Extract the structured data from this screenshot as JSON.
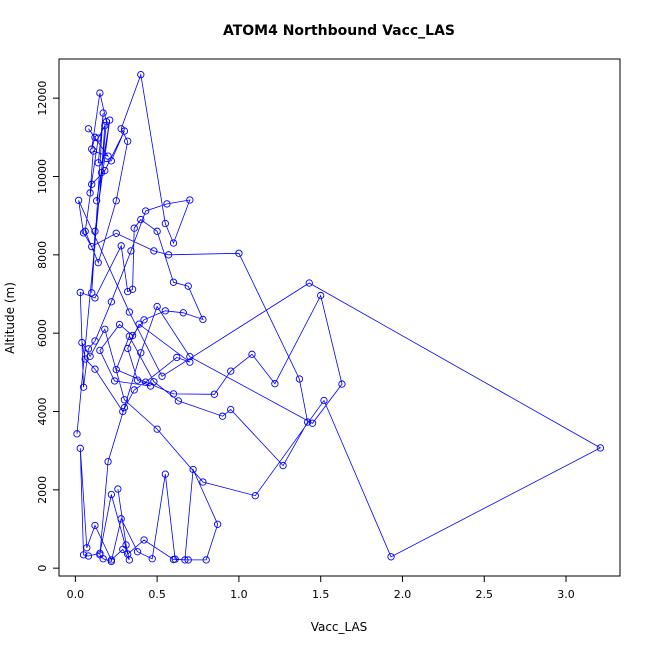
{
  "chart_data": {
    "type": "line",
    "title": "ATOM4 Northbound Vacc_LAS",
    "xlabel": "Vacc_LAS",
    "ylabel": "Altitude (m)",
    "xlim": [
      -0.1,
      3.33
    ],
    "ylim": [
      -200,
      13000
    ],
    "xticks": [
      0.0,
      0.5,
      1.0,
      1.5,
      2.0,
      2.5,
      3.0
    ],
    "xtick_labels": [
      "0.0",
      "0.5",
      "1.0",
      "1.5",
      "2.0",
      "2.5",
      "3.0"
    ],
    "yticks": [
      0,
      2000,
      4000,
      6000,
      8000,
      10000,
      12000
    ],
    "ytick_labels": [
      "0",
      "2000",
      "4000",
      "6000",
      "8000",
      "10000",
      "12000"
    ],
    "grid": false,
    "legend": "none",
    "series_color": "#0000ff",
    "markers": "open-circle",
    "series": [
      {
        "x": [
          0.01,
          0.19,
          0.15,
          0.1,
          0.12,
          0.08,
          0.2,
          0.11,
          0.09,
          0.14,
          0.18,
          0.16,
          0.13,
          0.21,
          0.12,
          0.1,
          0.17,
          0.14,
          0.22,
          0.3,
          0.18,
          0.1,
          0.06,
          0.14,
          0.25,
          0.32,
          0.28,
          0.4,
          0.55,
          0.6,
          0.7,
          0.56,
          0.43,
          0.34,
          0.22,
          0.12,
          0.08,
          0.05,
          0.03,
          0.12,
          0.28,
          0.32,
          0.35,
          0.36,
          0.4,
          0.5,
          0.6,
          0.69,
          0.78,
          0.66,
          0.55,
          0.42,
          0.35,
          0.27,
          0.15,
          0.24,
          0.46,
          0.38,
          0.32,
          0.39,
          0.7,
          0.62,
          0.43,
          0.36,
          0.29,
          0.12,
          0.06,
          0.04,
          0.09,
          0.18,
          0.3,
          0.5,
          0.78,
          1.1,
          1.52,
          1.93,
          3.21,
          1.43,
          0.53,
          0.33,
          0.02,
          0.05,
          0.1,
          0.25,
          0.48,
          0.57,
          1.0,
          1.37,
          1.42,
          1.27,
          0.95,
          0.9,
          0.63,
          0.48,
          0.33,
          0.25,
          0.6,
          0.85,
          0.95,
          1.08,
          1.22,
          1.5,
          1.63,
          1.45,
          0.7,
          0.5,
          0.4,
          0.3,
          0.2,
          0.15,
          0.17,
          0.22,
          0.28,
          0.38,
          0.47,
          0.55,
          0.61,
          0.67,
          0.72,
          0.87,
          0.8,
          0.69,
          0.6,
          0.42,
          0.32,
          0.22,
          0.15,
          0.08,
          0.05,
          0.03,
          0.07,
          0.12,
          0.22,
          0.29,
          0.33,
          0.31,
          0.26
        ],
        "y": [
          3430,
          11400,
          12130,
          10700,
          11000,
          11220,
          10520,
          10650,
          9580,
          10980,
          11300,
          10100,
          9380,
          11440,
          8600,
          7030,
          11620,
          10350,
          10400,
          11160,
          10150,
          9800,
          8600,
          7800,
          9380,
          10900,
          11220,
          12600,
          8800,
          8300,
          9400,
          9300,
          9120,
          8100,
          6800,
          5800,
          5600,
          4620,
          7040,
          6900,
          8230,
          7060,
          7120,
          8680,
          8900,
          8600,
          7300,
          7200,
          6350,
          6520,
          6570,
          6340,
          5940,
          6220,
          5560,
          4780,
          4650,
          4800,
          5610,
          6230,
          5260,
          5380,
          4750,
          4550,
          4000,
          5080,
          5340,
          5760,
          5410,
          6100,
          4300,
          3550,
          2200,
          1850,
          4280,
          290,
          3070,
          7280,
          4900,
          6540,
          9390,
          8560,
          8210,
          8550,
          8100,
          8000,
          8040,
          4830,
          3730,
          2620,
          4050,
          3880,
          4270,
          4760,
          5920,
          5070,
          4450,
          4440,
          5030,
          5460,
          4710,
          6960,
          4700,
          3700,
          5400,
          6680,
          5500,
          4100,
          2720,
          340,
          240,
          170,
          1260,
          420,
          240,
          2400,
          230,
          210,
          2520,
          1120,
          210,
          210,
          220,
          720,
          360,
          1880,
          380,
          310,
          340,
          3060,
          520,
          1090,
          210,
          480,
          210,
          590,
          2020
        ]
      }
    ]
  }
}
